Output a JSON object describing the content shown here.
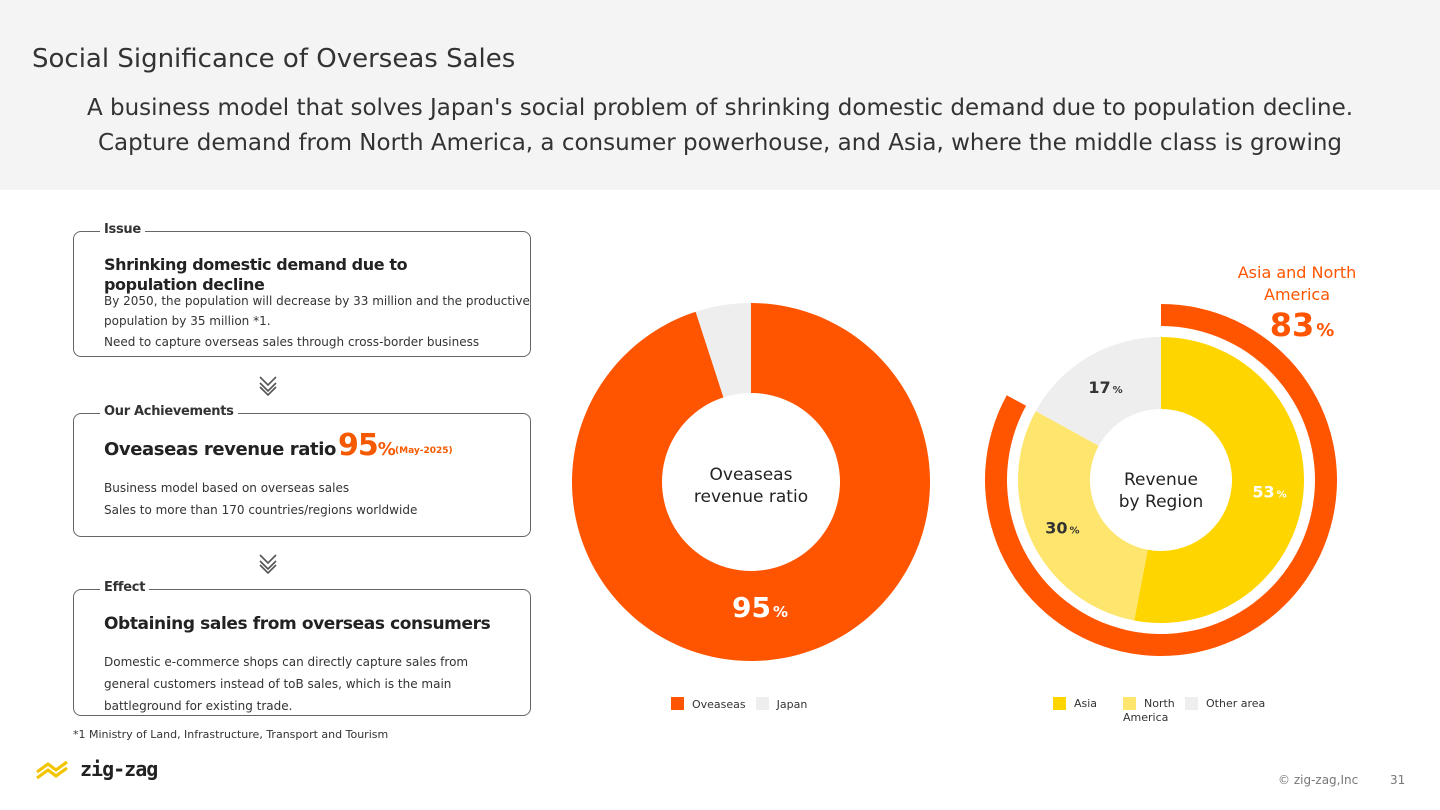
{
  "header": {
    "title": "Social Significance of Overseas Sales",
    "subtitle_line1": "A business model that solves Japan's social problem of shrinking domestic demand due to population decline.",
    "subtitle_line2": "Capture demand from North America, a consumer powerhouse, and Asia, where the middle class is growing"
  },
  "issue": {
    "label": "Issue",
    "heading": "Shrinking domestic demand due to population decline",
    "text1": "By 2050, the population will decrease by 33 million and the productive",
    "text2": "population by 35 million *1.",
    "text3": "Need to capture overseas sales through cross-border business"
  },
  "achievements": {
    "label": "Our Achievements",
    "heading": "Oveaseas revenue ratio",
    "value": "95",
    "value_unit": "%",
    "value_note": "(May-2025)",
    "text1": "Business model based on overseas sales",
    "text2": "Sales to more than 170 countries/regions worldwide"
  },
  "effect": {
    "label": "Effect",
    "heading": "Obtaining sales from overseas consumers",
    "text1": "Domestic e-commerce shops can directly capture sales from",
    "text2": "general customers instead of toB sales, which is the main",
    "text3": "battleground for existing trade."
  },
  "footnote": "*1 Ministry of Land, Infrastructure, Transport and Tourism",
  "footer": {
    "logo_text": "zig-zag",
    "copyright": "© zig-zag,Inc",
    "page_number": "31"
  },
  "chart_data": [
    {
      "type": "pie",
      "title": "Oveaseas revenue ratio",
      "center_label_line1": "Oveaseas",
      "center_label_line2": "revenue ratio",
      "categories": [
        "Oveaseas",
        "Japan"
      ],
      "values": [
        95,
        5
      ],
      "data_labels": [
        "95",
        ""
      ],
      "unit": "%",
      "colors": [
        "#ff5500",
        "#eeeeee"
      ],
      "legend_placement": "bottom"
    },
    {
      "type": "pie",
      "title": "Revenue by Region",
      "center_label_line1": "Revenue",
      "center_label_line2": "by Region",
      "categories": [
        "Asia",
        "North America",
        "Other area"
      ],
      "legend_labels": [
        [
          "Asia"
        ],
        [
          "North",
          "America"
        ],
        [
          "Other area"
        ]
      ],
      "values": [
        53,
        30,
        17
      ],
      "data_labels": [
        "53",
        "30",
        "17"
      ],
      "unit": "%",
      "colors": [
        "#ffd500",
        "#fee66e",
        "#eeeeee"
      ],
      "legend_placement": "bottom",
      "highlight": {
        "label_line1": "Asia and North",
        "label_line2": "America",
        "value": 83,
        "value_text": "83",
        "unit": "%",
        "color": "#ff5500"
      }
    }
  ]
}
